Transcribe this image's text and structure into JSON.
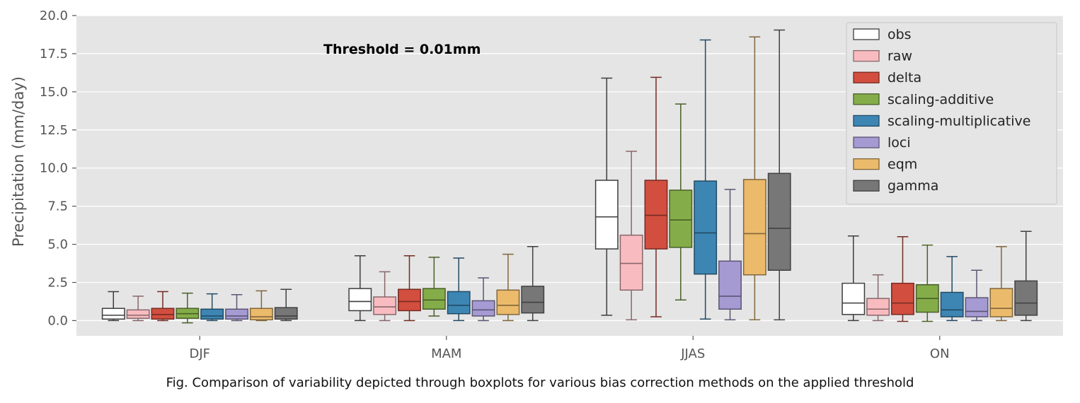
{
  "caption": "Fig. Comparison of variability depicted through boxplots for various bias correction methods on the applied threshold",
  "chart_data": {
    "type": "boxplot",
    "title": "",
    "annotation": "Threshold = 0.01mm",
    "xlabel": "",
    "ylabel": "Precipitation (mm/day)",
    "ylim": [
      -1.0,
      20.0
    ],
    "yticks": [
      0.0,
      2.5,
      5.0,
      7.5,
      10.0,
      12.5,
      15.0,
      17.5,
      20.0
    ],
    "ytick_labels": [
      "0.0",
      "2.5",
      "5.0",
      "7.5",
      "10.0",
      "12.5",
      "15.0",
      "17.5",
      "20.0"
    ],
    "grid": true,
    "legend_position": "top-right",
    "background_color": "#e5e5e5",
    "categories": [
      "DJF",
      "MAM",
      "JJAS",
      "ON"
    ],
    "series": [
      {
        "name": "obs",
        "color": "#ffffff",
        "boxes": [
          {
            "whislo": 0.0,
            "q1": 0.1,
            "med": 0.35,
            "q3": 0.8,
            "whishi": 1.9
          },
          {
            "whislo": 0.0,
            "q1": 0.65,
            "med": 1.25,
            "q3": 2.1,
            "whishi": 4.25
          },
          {
            "whislo": 0.35,
            "q1": 4.7,
            "med": 6.8,
            "q3": 9.2,
            "whishi": 15.9
          },
          {
            "whislo": 0.0,
            "q1": 0.4,
            "med": 1.15,
            "q3": 2.45,
            "whishi": 5.55
          }
        ]
      },
      {
        "name": "raw",
        "color": "#f8bcc0",
        "boxes": [
          {
            "whislo": 0.0,
            "q1": 0.15,
            "med": 0.35,
            "q3": 0.7,
            "whishi": 1.6
          },
          {
            "whislo": 0.0,
            "q1": 0.4,
            "med": 0.9,
            "q3": 1.55,
            "whishi": 3.2
          },
          {
            "whislo": 0.05,
            "q1": 2.0,
            "med": 3.75,
            "q3": 5.6,
            "whishi": 11.1
          },
          {
            "whislo": 0.0,
            "q1": 0.35,
            "med": 0.75,
            "q3": 1.45,
            "whishi": 3.0
          }
        ]
      },
      {
        "name": "delta",
        "color": "#d24e3f",
        "boxes": [
          {
            "whislo": 0.0,
            "q1": 0.1,
            "med": 0.4,
            "q3": 0.8,
            "whishi": 1.9
          },
          {
            "whislo": 0.0,
            "q1": 0.65,
            "med": 1.25,
            "q3": 2.05,
            "whishi": 4.25
          },
          {
            "whislo": 0.25,
            "q1": 4.7,
            "med": 6.9,
            "q3": 9.2,
            "whishi": 15.95
          },
          {
            "whislo": -0.05,
            "q1": 0.4,
            "med": 1.15,
            "q3": 2.45,
            "whishi": 5.5
          }
        ]
      },
      {
        "name": "scaling-additive",
        "color": "#84ad49",
        "boxes": [
          {
            "whislo": -0.15,
            "q1": 0.15,
            "med": 0.45,
            "q3": 0.8,
            "whishi": 1.8
          },
          {
            "whislo": 0.3,
            "q1": 0.75,
            "med": 1.35,
            "q3": 2.1,
            "whishi": 4.15
          },
          {
            "whislo": 1.35,
            "q1": 4.8,
            "med": 6.6,
            "q3": 8.55,
            "whishi": 14.2
          },
          {
            "whislo": -0.05,
            "q1": 0.55,
            "med": 1.45,
            "q3": 2.35,
            "whishi": 4.95
          }
        ]
      },
      {
        "name": "scaling-multiplicative",
        "color": "#3d86b4",
        "boxes": [
          {
            "whislo": 0.0,
            "q1": 0.1,
            "med": 0.3,
            "q3": 0.75,
            "whishi": 1.75
          },
          {
            "whislo": 0.0,
            "q1": 0.45,
            "med": 1.0,
            "q3": 1.9,
            "whishi": 4.1
          },
          {
            "whislo": 0.1,
            "q1": 3.05,
            "med": 5.75,
            "q3": 9.15,
            "whishi": 18.4
          },
          {
            "whislo": 0.0,
            "q1": 0.25,
            "med": 0.7,
            "q3": 1.85,
            "whishi": 4.2
          }
        ]
      },
      {
        "name": "loci",
        "color": "#a59ad2",
        "boxes": [
          {
            "whislo": 0.0,
            "q1": 0.1,
            "med": 0.3,
            "q3": 0.75,
            "whishi": 1.7
          },
          {
            "whislo": 0.0,
            "q1": 0.3,
            "med": 0.7,
            "q3": 1.3,
            "whishi": 2.8
          },
          {
            "whislo": 0.05,
            "q1": 0.75,
            "med": 1.6,
            "q3": 3.9,
            "whishi": 8.6
          },
          {
            "whislo": 0.0,
            "q1": 0.25,
            "med": 0.6,
            "q3": 1.5,
            "whishi": 3.3
          }
        ]
      },
      {
        "name": "eqm",
        "color": "#ebba6b",
        "boxes": [
          {
            "whislo": 0.0,
            "q1": 0.05,
            "med": 0.25,
            "q3": 0.8,
            "whishi": 1.95
          },
          {
            "whislo": 0.0,
            "q1": 0.4,
            "med": 1.0,
            "q3": 2.0,
            "whishi": 4.35
          },
          {
            "whislo": 0.05,
            "q1": 3.0,
            "med": 5.7,
            "q3": 9.25,
            "whishi": 18.6
          },
          {
            "whislo": 0.0,
            "q1": 0.25,
            "med": 0.8,
            "q3": 2.1,
            "whishi": 4.85
          }
        ]
      },
      {
        "name": "gamma",
        "color": "#777777",
        "boxes": [
          {
            "whislo": 0.0,
            "q1": 0.1,
            "med": 0.3,
            "q3": 0.85,
            "whishi": 2.05
          },
          {
            "whislo": 0.0,
            "q1": 0.5,
            "med": 1.2,
            "q3": 2.25,
            "whishi": 4.85
          },
          {
            "whislo": 0.05,
            "q1": 3.3,
            "med": 6.05,
            "q3": 9.65,
            "whishi": 19.05
          },
          {
            "whislo": 0.0,
            "q1": 0.35,
            "med": 1.15,
            "q3": 2.6,
            "whishi": 5.85
          }
        ]
      }
    ]
  }
}
